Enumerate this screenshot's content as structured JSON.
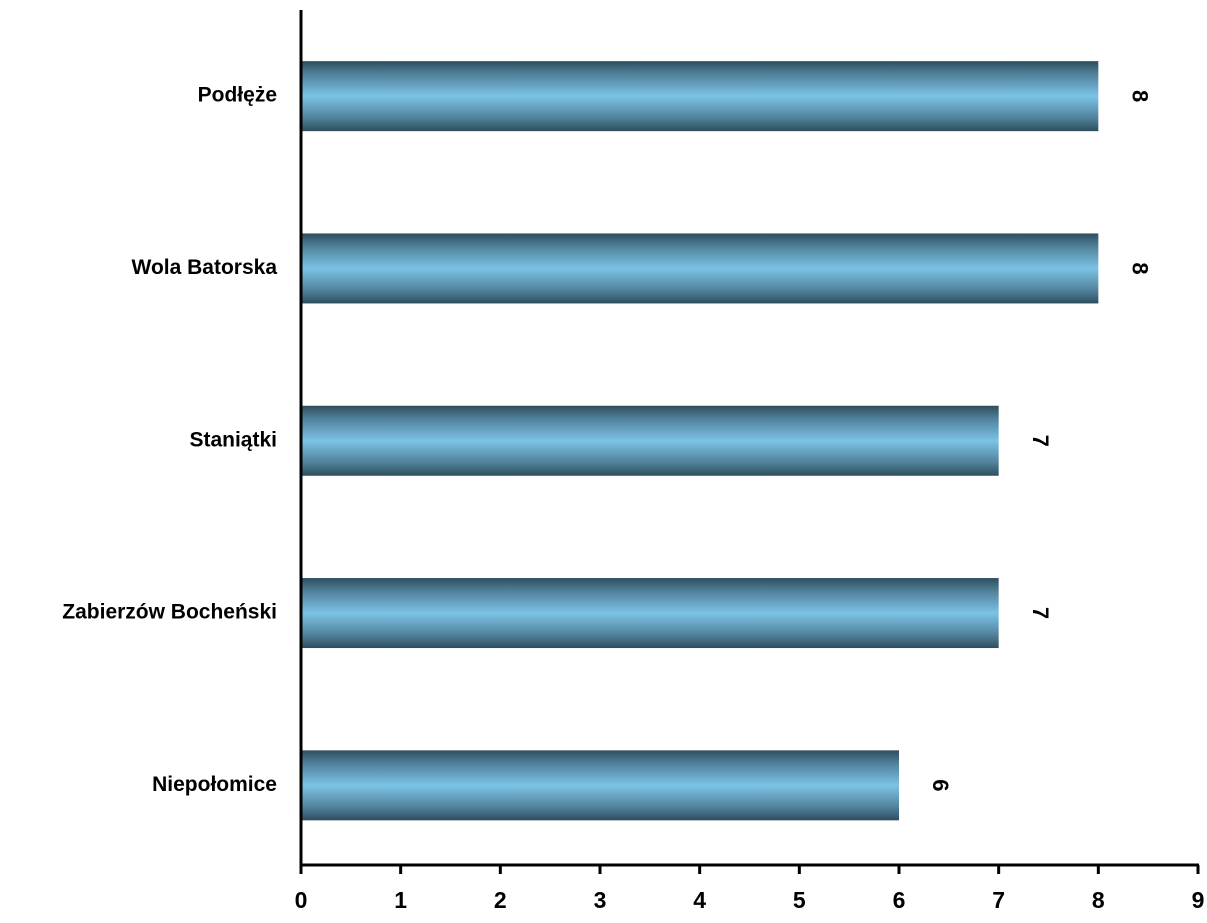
{
  "chart_data": {
    "type": "bar",
    "orientation": "horizontal",
    "categories": [
      "Podłęże",
      "Wola Batorska",
      "Staniątki",
      "Zabierzów Bocheński",
      "Niepołomice"
    ],
    "values": [
      8,
      8,
      7,
      7,
      6
    ],
    "data_labels": [
      "8",
      "8",
      "7",
      "7",
      "6"
    ],
    "title": "",
    "xlabel": "",
    "ylabel": "",
    "xlim": [
      0,
      9
    ],
    "x_ticks": [
      0,
      1,
      2,
      3,
      4,
      5,
      6,
      7,
      8,
      9
    ],
    "grid": false,
    "legend": "none",
    "data_label_rotation": "rotated 90° clockwise",
    "colors": {
      "bar_center": "#7cc3e6",
      "bar_edge": "#2e4d5e",
      "axis": "#000000"
    }
  }
}
